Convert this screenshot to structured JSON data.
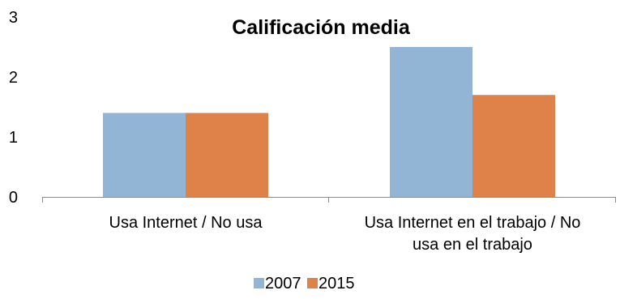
{
  "chart_data": {
    "type": "bar",
    "title": "Calificación media",
    "categories": [
      [
        "Usa Internet / No usa"
      ],
      [
        "Usa Internet en el trabajo / No",
        "usa en el trabajo"
      ]
    ],
    "series": [
      {
        "name": "2007",
        "values": [
          1.4,
          2.5
        ],
        "color": "#93b5d5"
      },
      {
        "name": "2015",
        "values": [
          1.4,
          1.7
        ],
        "color": "#df8249"
      }
    ],
    "ylim": [
      0,
      3
    ],
    "yticks": [
      0,
      1,
      2,
      3
    ],
    "grid": false,
    "legend_position": "bottom"
  }
}
